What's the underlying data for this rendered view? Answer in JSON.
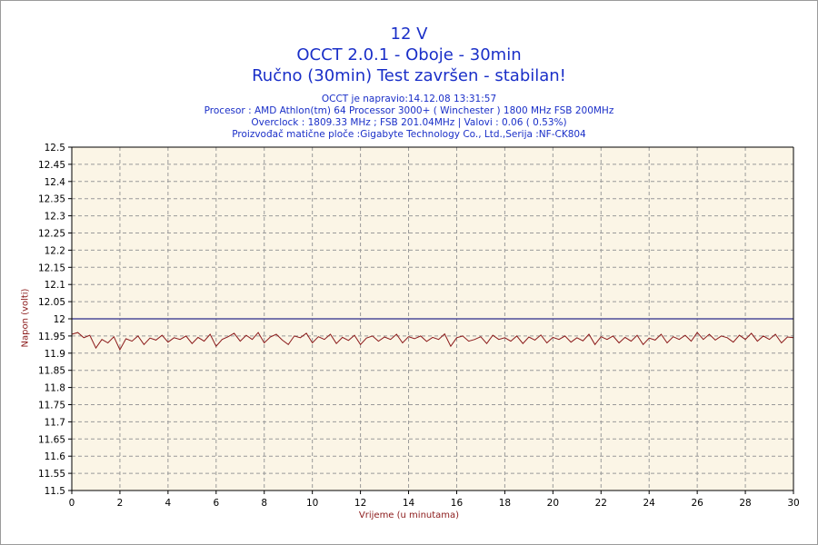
{
  "header": {
    "title_line1": "12 V",
    "title_line2": "OCCT 2.0.1 - Oboje - 30min",
    "title_line3": "Ručno (30min) Test završen - stabilan!",
    "info_line1": "OCCT je napravio:14.12.08 13:31:57",
    "info_line2": "Procesor : AMD Athlon(tm) 64 Processor 3000+ ( Winchester ) 1800 MHz FSB 200MHz",
    "info_line3": "Overclock : 1809.33 MHz ; FSB 201.04MHz | Valovi : 0.06 ( 0.53%)",
    "info_line4": "Proizvođač matične ploče :Gigabyte Technology Co., Ltd.,Serija :NF-CK804"
  },
  "colors": {
    "plot_background": "#fbf5e6",
    "series_line": "#8b1a1a",
    "reference_line": "#2a2a8a",
    "title_text": "#1a2fc8",
    "axis_label_text": "#8b1a1a",
    "grid": "#9a9a9a"
  },
  "chart_data": {
    "type": "line",
    "xlabel": "Vrijeme (u minutama)",
    "ylabel": "Napon (volti)",
    "xlim": [
      0,
      30
    ],
    "ylim": [
      11.5,
      12.5
    ],
    "x_ticks": [
      0,
      2,
      4,
      6,
      8,
      10,
      12,
      14,
      16,
      18,
      20,
      22,
      24,
      26,
      28,
      30
    ],
    "y_ticks": [
      11.5,
      11.55,
      11.6,
      11.65,
      11.7,
      11.75,
      11.8,
      11.85,
      11.9,
      11.95,
      12,
      12.05,
      12.1,
      12.15,
      12.2,
      12.25,
      12.3,
      12.35,
      12.4,
      12.45,
      12.5
    ],
    "grid": true,
    "reference_line": 12.0,
    "series": [
      {
        "x": [
          0,
          0.25,
          0.5,
          0.75,
          1,
          1.25,
          1.5,
          1.75,
          2,
          2.25,
          2.5,
          2.75,
          3,
          3.25,
          3.5,
          3.75,
          4,
          4.25,
          4.5,
          4.75,
          5,
          5.25,
          5.5,
          5.75,
          6,
          6.25,
          6.5,
          6.75,
          7,
          7.25,
          7.5,
          7.75,
          8,
          8.25,
          8.5,
          8.75,
          9,
          9.25,
          9.5,
          9.75,
          10,
          10.25,
          10.5,
          10.75,
          11,
          11.25,
          11.5,
          11.75,
          12,
          12.25,
          12.5,
          12.75,
          13,
          13.25,
          13.5,
          13.75,
          14,
          14.25,
          14.5,
          14.75,
          15,
          15.25,
          15.5,
          15.75,
          16,
          16.25,
          16.5,
          16.75,
          17,
          17.25,
          17.5,
          17.75,
          18,
          18.25,
          18.5,
          18.75,
          19,
          19.25,
          19.5,
          19.75,
          20,
          20.25,
          20.5,
          20.75,
          21,
          21.25,
          21.5,
          21.75,
          22,
          22.25,
          22.5,
          22.75,
          23,
          23.25,
          23.5,
          23.75,
          24,
          24.25,
          24.5,
          24.75,
          25,
          25.25,
          25.5,
          25.75,
          26,
          26.25,
          26.5,
          26.75,
          27,
          27.25,
          27.5,
          27.75,
          28,
          28.25,
          28.5,
          28.75,
          29,
          29.25,
          29.5,
          29.75,
          30
        ],
        "values": [
          11.955,
          11.96,
          11.945,
          11.952,
          11.915,
          11.94,
          11.93,
          11.948,
          11.91,
          11.942,
          11.935,
          11.95,
          11.925,
          11.944,
          11.938,
          11.952,
          11.932,
          11.945,
          11.94,
          11.95,
          11.928,
          11.946,
          11.935,
          11.955,
          11.92,
          11.94,
          11.948,
          11.958,
          11.935,
          11.952,
          11.94,
          11.96,
          11.93,
          11.947,
          11.955,
          11.938,
          11.925,
          11.95,
          11.945,
          11.958,
          11.93,
          11.948,
          11.94,
          11.955,
          11.928,
          11.946,
          11.937,
          11.952,
          11.925,
          11.944,
          11.95,
          11.935,
          11.947,
          11.94,
          11.955,
          11.93,
          11.948,
          11.942,
          11.95,
          11.934,
          11.946,
          11.94,
          11.956,
          11.92,
          11.945,
          11.95,
          11.935,
          11.94,
          11.948,
          11.928,
          11.952,
          11.94,
          11.945,
          11.935,
          11.95,
          11.928,
          11.947,
          11.938,
          11.953,
          11.93,
          11.946,
          11.94,
          11.95,
          11.932,
          11.945,
          11.936,
          11.955,
          11.925,
          11.948,
          11.94,
          11.95,
          11.93,
          11.946,
          11.935,
          11.952,
          11.925,
          11.944,
          11.938,
          11.955,
          11.93,
          11.948,
          11.94,
          11.952,
          11.935,
          11.96,
          11.94,
          11.955,
          11.938,
          11.95,
          11.945,
          11.932,
          11.952,
          11.94,
          11.958,
          11.935,
          11.95,
          11.94,
          11.955,
          11.93,
          11.947,
          11.945
        ]
      }
    ]
  }
}
